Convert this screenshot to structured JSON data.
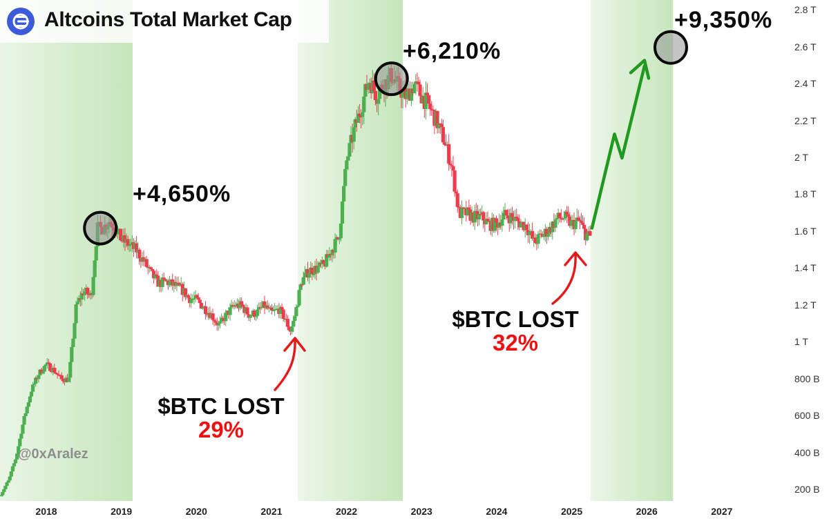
{
  "header": {
    "title": "Altcoins Total Market Cap"
  },
  "watermark": "@0xAralez",
  "colors": {
    "up": "#4caf50",
    "down": "#ef3b4e",
    "shade": "#c6e6bc",
    "arrow_red": "#e31b1b",
    "arrow_green": "#1f9a1f",
    "logo": "#3b5bd9"
  },
  "icons": {
    "logo": "lines-logo-icon"
  },
  "annotations": {
    "peak_2018": "+4,650%",
    "peak_2021": "+6,210%",
    "peak_projected": "+9,350%",
    "bottom_2020": {
      "line1": "$BTC LOST",
      "line2": "29%"
    },
    "bottom_2024": {
      "line1": "$BTC LOST",
      "line2": "32%"
    }
  },
  "chart_data": {
    "type": "candlestick",
    "title": "Altcoins Total Market Cap",
    "y_unit": "USD",
    "ylim": [
      0.15,
      2.85
    ],
    "y_ticks": [
      "200 B",
      "400 B",
      "600 B",
      "800 B",
      "1 T",
      "1.2 T",
      "1.4 T",
      "1.6 T",
      "1.8 T",
      "2 T",
      "2.2 T",
      "2.4 T",
      "2.6 T",
      "2.8 T"
    ],
    "y_tick_values": [
      0.2,
      0.4,
      0.6,
      0.8,
      1.0,
      1.2,
      1.4,
      1.6,
      1.8,
      2.0,
      2.2,
      2.4,
      2.6,
      2.8
    ],
    "x_ticks": [
      "2018",
      "2019",
      "2020",
      "2021",
      "2022",
      "2023",
      "2024",
      "2025",
      "2026",
      "2027"
    ],
    "x_tick_values": [
      2018,
      2019,
      2020,
      2021,
      2022,
      2023,
      2024,
      2025,
      2026,
      2027
    ],
    "xlim": [
      2017.5,
      2027.75
    ],
    "shaded_periods": [
      [
        2017.3,
        2019.15
      ],
      [
        2021.35,
        2022.75
      ],
      [
        2025.25,
        2026.35
      ]
    ],
    "price_path": [
      [
        2017.38,
        0.17
      ],
      [
        2017.5,
        0.25
      ],
      [
        2017.6,
        0.38
      ],
      [
        2017.7,
        0.58
      ],
      [
        2017.8,
        0.74
      ],
      [
        2017.9,
        0.83
      ],
      [
        2018.0,
        0.88
      ],
      [
        2018.1,
        0.85
      ],
      [
        2018.2,
        0.8
      ],
      [
        2018.3,
        0.8
      ],
      [
        2018.4,
        1.2
      ],
      [
        2018.5,
        1.28
      ],
      [
        2018.6,
        1.25
      ],
      [
        2018.68,
        1.62
      ],
      [
        2018.76,
        1.62
      ],
      [
        2018.84,
        1.66
      ],
      [
        2018.92,
        1.62
      ],
      [
        2019.0,
        1.56
      ],
      [
        2019.1,
        1.53
      ],
      [
        2019.2,
        1.5
      ],
      [
        2019.3,
        1.44
      ],
      [
        2019.4,
        1.37
      ],
      [
        2019.5,
        1.32
      ],
      [
        2019.6,
        1.33
      ],
      [
        2019.7,
        1.31
      ],
      [
        2019.8,
        1.29
      ],
      [
        2019.9,
        1.24
      ],
      [
        2020.0,
        1.23
      ],
      [
        2020.1,
        1.19
      ],
      [
        2020.2,
        1.15
      ],
      [
        2020.3,
        1.09
      ],
      [
        2020.4,
        1.15
      ],
      [
        2020.5,
        1.2
      ],
      [
        2020.6,
        1.2
      ],
      [
        2020.7,
        1.15
      ],
      [
        2020.8,
        1.16
      ],
      [
        2020.9,
        1.2
      ],
      [
        2021.0,
        1.16
      ],
      [
        2021.1,
        1.18
      ],
      [
        2021.18,
        1.13
      ],
      [
        2021.25,
        1.06
      ],
      [
        2021.3,
        1.12
      ],
      [
        2021.4,
        1.33
      ],
      [
        2021.5,
        1.39
      ],
      [
        2021.6,
        1.4
      ],
      [
        2021.7,
        1.42
      ],
      [
        2021.8,
        1.5
      ],
      [
        2021.9,
        1.57
      ],
      [
        2022.0,
        1.98
      ],
      [
        2022.1,
        2.15
      ],
      [
        2022.2,
        2.28
      ],
      [
        2022.3,
        2.43
      ],
      [
        2022.4,
        2.34
      ],
      [
        2022.5,
        2.4
      ],
      [
        2022.6,
        2.45
      ],
      [
        2022.7,
        2.38
      ],
      [
        2022.8,
        2.33
      ],
      [
        2022.9,
        2.4
      ],
      [
        2023.0,
        2.34
      ],
      [
        2023.1,
        2.28
      ],
      [
        2023.2,
        2.2
      ],
      [
        2023.3,
        2.1
      ],
      [
        2023.4,
        1.96
      ],
      [
        2023.5,
        1.7
      ],
      [
        2023.6,
        1.7
      ],
      [
        2023.7,
        1.68
      ],
      [
        2023.8,
        1.68
      ],
      [
        2023.9,
        1.64
      ],
      [
        2024.0,
        1.64
      ],
      [
        2024.1,
        1.69
      ],
      [
        2024.2,
        1.68
      ],
      [
        2024.3,
        1.65
      ],
      [
        2024.4,
        1.63
      ],
      [
        2024.5,
        1.54
      ],
      [
        2024.6,
        1.58
      ],
      [
        2024.7,
        1.61
      ],
      [
        2024.8,
        1.67
      ],
      [
        2024.9,
        1.68
      ],
      [
        2025.0,
        1.64
      ],
      [
        2025.1,
        1.66
      ],
      [
        2025.18,
        1.59
      ],
      [
        2025.25,
        1.57
      ]
    ],
    "projection": [
      [
        2025.27,
        1.62
      ],
      [
        2025.57,
        2.13
      ],
      [
        2025.67,
        2.0
      ],
      [
        2025.97,
        2.5
      ]
    ],
    "highlight_circles": [
      [
        2018.72,
        1.62
      ],
      [
        2022.6,
        2.43
      ],
      [
        2026.32,
        2.6
      ]
    ]
  }
}
